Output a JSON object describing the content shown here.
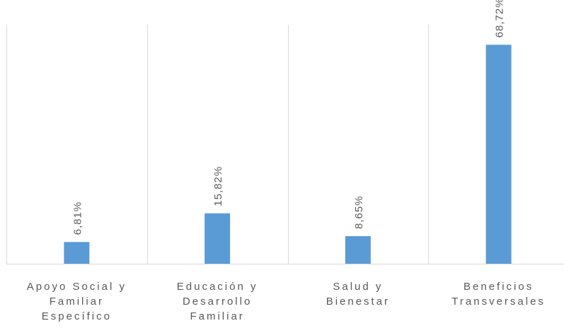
{
  "chart_data": {
    "type": "bar",
    "categories": [
      [
        "Apoyo Social y",
        "Familiar",
        "Específico"
      ],
      [
        "Educación y",
        "Desarrollo",
        "Familiar"
      ],
      [
        "Salud y",
        "Bienestar"
      ],
      [
        "Beneficios",
        "Transversales"
      ]
    ],
    "values": [
      6.81,
      15.82,
      8.65,
      68.72
    ],
    "data_labels": [
      "6,81%",
      "15,82%",
      "8,65%",
      "68,72%"
    ],
    "title": "",
    "xlabel": "",
    "ylabel": "",
    "ylim": [
      0,
      75
    ],
    "grid": "vertical category separators",
    "legend": "none",
    "colors": {
      "bar": "#5B9BD5",
      "grid": "#D9D9D9",
      "text": "#595959"
    }
  }
}
